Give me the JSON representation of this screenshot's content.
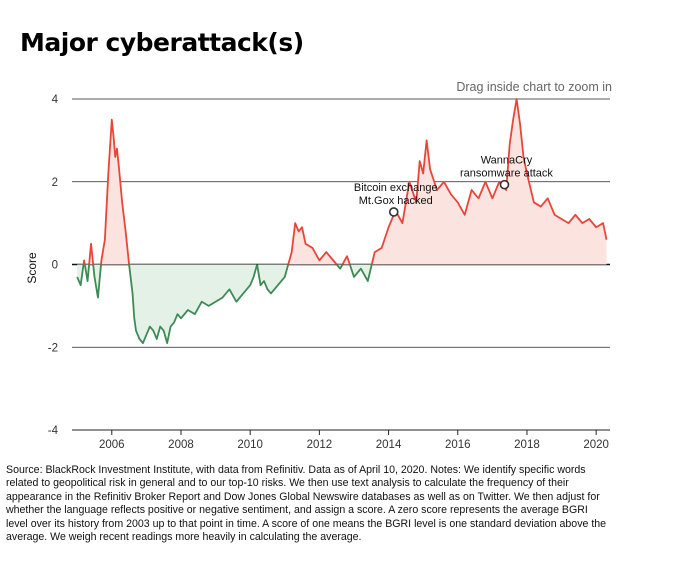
{
  "chart_data": {
    "type": "area",
    "title": "Major cyberattack(s)",
    "hint": "Drag inside chart to zoom in",
    "ylabel": "Score",
    "ylim": [
      -4,
      4
    ],
    "xlim": [
      2004.85,
      2020.4
    ],
    "yticks": [
      4,
      2,
      0,
      -2,
      -4
    ],
    "ytick_labels": [
      "4",
      "2",
      "0",
      "-2",
      "-4"
    ],
    "xticks": [
      2006,
      2008,
      2010,
      2012,
      2014,
      2016,
      2018,
      2020
    ],
    "xtick_labels": [
      "2006",
      "2008",
      "2010",
      "2012",
      "2014",
      "2016",
      "2018",
      "2020"
    ],
    "positive_color": "#e8463a",
    "negative_color": "#3d8a55",
    "positive_fill": "#fbe3df",
    "negative_fill": "#e4f1e7",
    "series": [
      {
        "x": [
          2005.0,
          2005.1,
          2005.2,
          2005.3,
          2005.4,
          2005.5,
          2005.6,
          2005.7,
          2005.8,
          2005.9,
          2006.0,
          2006.05,
          2006.1,
          2006.15,
          2006.2,
          2006.3,
          2006.4,
          2006.5,
          2006.6,
          2006.65,
          2006.7,
          2006.8,
          2006.9,
          2007.0,
          2007.1,
          2007.2,
          2007.3,
          2007.4,
          2007.5,
          2007.6,
          2007.7,
          2007.8,
          2007.9,
          2008.0,
          2008.2,
          2008.4,
          2008.6,
          2008.8,
          2009.0,
          2009.2,
          2009.4,
          2009.6,
          2009.8,
          2010.0,
          2010.1,
          2010.2,
          2010.3,
          2010.4,
          2010.5,
          2010.6,
          2010.8,
          2011.0,
          2011.2,
          2011.3,
          2011.4,
          2011.5,
          2011.6,
          2011.8,
          2012.0,
          2012.2,
          2012.4,
          2012.6,
          2012.8,
          2013.0,
          2013.2,
          2013.4,
          2013.6,
          2013.8,
          2014.0,
          2014.2,
          2014.4,
          2014.6,
          2014.8,
          2014.9,
          2015.0,
          2015.1,
          2015.2,
          2015.4,
          2015.6,
          2015.8,
          2016.0,
          2016.2,
          2016.4,
          2016.6,
          2016.8,
          2017.0,
          2017.2,
          2017.4,
          2017.5,
          2017.6,
          2017.7,
          2017.8,
          2017.9,
          2018.0,
          2018.2,
          2018.4,
          2018.6,
          2018.8,
          2019.0,
          2019.2,
          2019.4,
          2019.6,
          2019.8,
          2020.0,
          2020.2,
          2020.3
        ],
        "y": [
          -0.3,
          -0.5,
          0.1,
          -0.4,
          0.5,
          -0.3,
          -0.8,
          0.1,
          0.6,
          2.2,
          3.5,
          3.1,
          2.6,
          2.8,
          2.4,
          1.5,
          0.8,
          0.0,
          -0.7,
          -1.3,
          -1.6,
          -1.8,
          -1.9,
          -1.7,
          -1.5,
          -1.6,
          -1.8,
          -1.5,
          -1.6,
          -1.9,
          -1.5,
          -1.4,
          -1.2,
          -1.3,
          -1.1,
          -1.2,
          -0.9,
          -1.0,
          -0.9,
          -0.8,
          -0.6,
          -0.9,
          -0.7,
          -0.5,
          -0.3,
          0.0,
          -0.5,
          -0.4,
          -0.6,
          -0.7,
          -0.5,
          -0.3,
          0.3,
          1.0,
          0.8,
          0.9,
          0.5,
          0.4,
          0.1,
          0.3,
          0.1,
          -0.1,
          0.2,
          -0.3,
          -0.1,
          -0.4,
          0.3,
          0.4,
          0.9,
          1.3,
          1.0,
          2.0,
          1.5,
          2.5,
          2.2,
          3.0,
          2.3,
          1.8,
          2.0,
          1.7,
          1.5,
          1.2,
          1.8,
          1.6,
          2.0,
          1.6,
          2.0,
          1.8,
          2.9,
          3.5,
          4.0,
          3.4,
          2.6,
          2.2,
          1.5,
          1.4,
          1.6,
          1.2,
          1.1,
          1.0,
          1.2,
          1.0,
          1.1,
          0.9,
          1.0,
          0.6
        ]
      }
    ],
    "annotations": [
      {
        "text": [
          "Bitcoin exchange",
          "Mt.Gox hacked"
        ],
        "x": 2014.15,
        "y": 1.27
      },
      {
        "text": [
          "WannaCry",
          "ransomware attack"
        ],
        "x": 2017.35,
        "y": 1.93
      }
    ]
  },
  "source_note": "Source: BlackRock Investment Institute, with data from Refinitiv. Data as of April 10, 2020. Notes: We identify specific words related to geopolitical risk in general and to our top-10 risks. We then use text analysis to calculate the frequency of their appearance in the Refinitiv Broker Report and Dow Jones Global Newswire databases as well as on Twitter. We then adjust for whether the language reflects positive or negative sentiment, and assign a score. A zero score represents the average BGRI level over its history from 2003 up to that point in time. A score of one means the BGRI level is one standard deviation above the average. We weigh recent readings more heavily in calculating the average."
}
